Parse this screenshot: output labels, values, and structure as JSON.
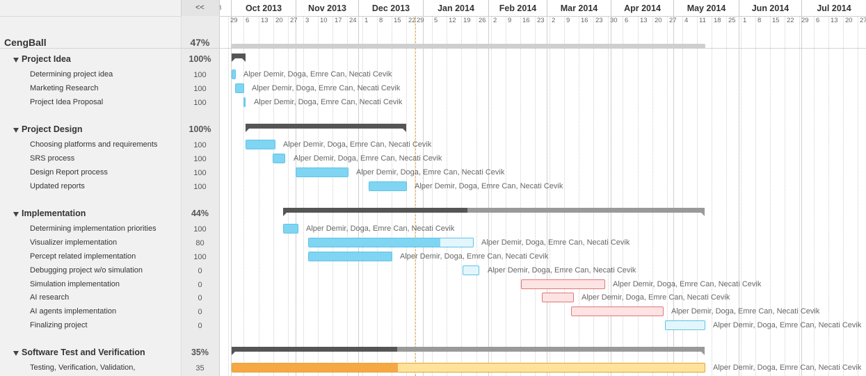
{
  "header": {
    "collapse_label": "<<"
  },
  "project": {
    "name": "CengBall",
    "percent": "47%",
    "percent_value": 47
  },
  "timeline": {
    "months": [
      "Oct 2013",
      "Nov 2013",
      "Dec 2013",
      "Jan 2014",
      "Feb 2014",
      "Mar 2014",
      "Apr 2014",
      "May 2014",
      "Jun 2014",
      "Jul 2014"
    ],
    "week_days": [
      "29",
      "6",
      "13",
      "20",
      "27",
      "3",
      "10",
      "17",
      "24",
      "1",
      "8",
      "15",
      "22",
      "29",
      "5",
      "12",
      "19",
      "26",
      "2",
      "9",
      "16",
      "23",
      "2",
      "9",
      "16",
      "23",
      "30",
      "6",
      "13",
      "20",
      "27",
      "4",
      "11",
      "18",
      "25",
      "1",
      "8",
      "15",
      "22",
      "29",
      "6",
      "13",
      "20",
      "27"
    ],
    "partial_label": "8"
  },
  "groups": [
    {
      "name": "Project Idea",
      "percent": "100%",
      "percent_value": 100,
      "tasks": [
        {
          "name": "Determining project idea",
          "percent": "100",
          "percent_value": 100,
          "assignees": "Alper Demir, Doga, Emre Can, Necati Cevik",
          "color": "blue"
        },
        {
          "name": "Marketing Research",
          "percent": "100",
          "percent_value": 100,
          "assignees": "Alper Demir, Doga, Emre Can, Necati Cevik",
          "color": "blue"
        },
        {
          "name": "Project Idea Proposal",
          "percent": "100",
          "percent_value": 100,
          "assignees": "Alper Demir, Doga, Emre Can, Necati Cevik",
          "color": "blue"
        }
      ]
    },
    {
      "name": "Project Design",
      "percent": "100%",
      "percent_value": 100,
      "tasks": [
        {
          "name": "Choosing platforms and requirements",
          "percent": "100",
          "percent_value": 100,
          "assignees": "Alper Demir, Doga, Emre Can, Necati Cevik",
          "color": "blue"
        },
        {
          "name": "SRS process",
          "percent": "100",
          "percent_value": 100,
          "assignees": "Alper Demir, Doga, Emre Can, Necati Cevik",
          "color": "blue"
        },
        {
          "name": "Design Report process",
          "percent": "100",
          "percent_value": 100,
          "assignees": "Alper Demir, Doga, Emre Can, Necati Cevik",
          "color": "blue"
        },
        {
          "name": "Updated reports",
          "percent": "100",
          "percent_value": 100,
          "assignees": "Alper Demir, Doga, Emre Can, Necati Cevik",
          "color": "blue"
        }
      ]
    },
    {
      "name": "Implementation",
      "percent": "44%",
      "percent_value": 44,
      "tasks": [
        {
          "name": "Determining implementation priorities",
          "percent": "100",
          "percent_value": 100,
          "assignees": "Alper Demir, Doga, Emre Can, Necati Cevik",
          "color": "blue"
        },
        {
          "name": "Visualizer implementation",
          "percent": "80",
          "percent_value": 80,
          "assignees": "Alper Demir, Doga, Emre Can, Necati Cevik",
          "color": "blue"
        },
        {
          "name": "Percept related implementation",
          "percent": "100",
          "percent_value": 100,
          "assignees": "Alper Demir, Doga, Emre Can, Necati Cevik",
          "color": "blue"
        },
        {
          "name": "Debugging project w/o simulation",
          "percent": "0",
          "percent_value": 0,
          "assignees": "Alper Demir, Doga, Emre Can, Necati Cevik",
          "color": "blue"
        },
        {
          "name": "Simulation implementation",
          "percent": "0",
          "percent_value": 0,
          "assignees": "Alper Demir, Doga, Emre Can, Necati Cevik",
          "color": "red"
        },
        {
          "name": "AI research",
          "percent": "0",
          "percent_value": 0,
          "assignees": "Alper Demir, Doga, Emre Can, Necati Cevik",
          "color": "red"
        },
        {
          "name": "AI agents implementation",
          "percent": "0",
          "percent_value": 0,
          "assignees": "Alper Demir, Doga, Emre Can, Necati Cevik",
          "color": "red"
        },
        {
          "name": "Finalizing project",
          "percent": "0",
          "percent_value": 0,
          "assignees": "Alper Demir, Doga, Emre Can, Necati Cevik",
          "color": "blue"
        }
      ]
    },
    {
      "name": "Software Test and Verification",
      "percent": "35%",
      "percent_value": 35,
      "tasks": [
        {
          "name": "Testing, Verification, Validation,",
          "percent": "35",
          "percent_value": 35,
          "assignees": "Alper Demir, Doga, Emre Can, Necati Cevik",
          "color": "orange"
        }
      ]
    }
  ],
  "colors": {
    "bar_blue": "#7fd5f2",
    "bar_red": "#f4a3a3",
    "bar_orange": "#f6a844",
    "summary_done": "#555555",
    "summary_rest": "#999999",
    "today_line": "#f0b040"
  }
}
